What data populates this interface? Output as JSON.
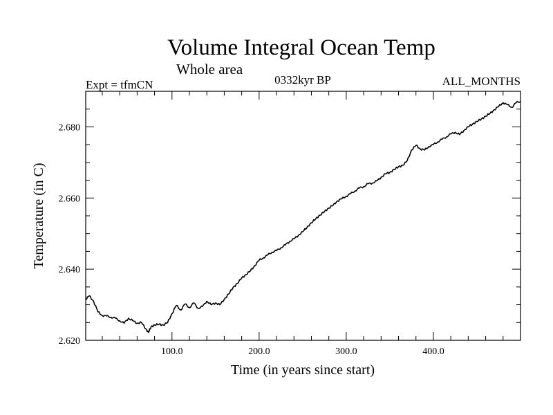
{
  "chart_data": {
    "type": "line",
    "title": "Volume Integral Ocean Temp",
    "subtitle": "Whole area",
    "left_label": "Expt = tfmCN",
    "center_label": "0332kyr BP",
    "right_label": "ALL_MONTHS",
    "xlabel": "Time (in years since start)",
    "ylabel": "Temperature (in C)",
    "xlim": [
      1,
      500
    ],
    "ylim": [
      2.62,
      2.69
    ],
    "x_major_ticks": [
      100,
      200,
      300,
      400
    ],
    "x_tick_labels": [
      "100.0",
      "200.0",
      "300.0",
      "400.0"
    ],
    "x_minor_step": 20,
    "y_major_ticks": [
      2.62,
      2.64,
      2.66,
      2.68
    ],
    "y_tick_labels": [
      "2.620",
      "2.640",
      "2.660",
      "2.680"
    ],
    "y_minor_step": 0.005,
    "grid": false,
    "series": [
      {
        "x": [
          1,
          5,
          10,
          15,
          20,
          25,
          30,
          35,
          40,
          45,
          50,
          55,
          60,
          65,
          70,
          73,
          76,
          80,
          85,
          90,
          95,
          100,
          105,
          110,
          115,
          120,
          125,
          130,
          135,
          140,
          145,
          150,
          155,
          160,
          165,
          170,
          175,
          180,
          185,
          190,
          195,
          200,
          205,
          210,
          215,
          220,
          225,
          230,
          235,
          240,
          245,
          250,
          255,
          260,
          265,
          270,
          275,
          280,
          285,
          290,
          295,
          300,
          305,
          310,
          315,
          320,
          325,
          330,
          335,
          340,
          345,
          350,
          355,
          360,
          365,
          370,
          375,
          380,
          385,
          390,
          395,
          400,
          405,
          410,
          415,
          420,
          425,
          430,
          435,
          440,
          445,
          450,
          455,
          460,
          465,
          470,
          475,
          480,
          485,
          490,
          495,
          500
        ],
        "values": [
          2.6315,
          2.6325,
          2.631,
          2.628,
          2.627,
          2.6268,
          2.6265,
          2.6262,
          2.6255,
          2.6248,
          2.6262,
          2.6255,
          2.6248,
          2.625,
          2.6232,
          2.6222,
          2.6238,
          2.6243,
          2.6245,
          2.6243,
          2.625,
          2.6275,
          2.6298,
          2.6285,
          2.6302,
          2.6292,
          2.6305,
          2.629,
          2.6295,
          2.631,
          2.63,
          2.6305,
          2.63,
          2.6315,
          2.633,
          2.6348,
          2.636,
          2.6375,
          2.6385,
          2.6395,
          2.641,
          2.6425,
          2.6432,
          2.644,
          2.6448,
          2.6452,
          2.646,
          2.6468,
          2.6478,
          2.6485,
          2.6495,
          2.6505,
          2.6518,
          2.653,
          2.6542,
          2.6552,
          2.6562,
          2.6572,
          2.658,
          2.6592,
          2.6598,
          2.6605,
          2.6612,
          2.662,
          2.6628,
          2.6632,
          2.664,
          2.6642,
          2.6648,
          2.6658,
          2.6668,
          2.6672,
          2.668,
          2.6688,
          2.6692,
          2.6705,
          2.6735,
          2.6748,
          2.6738,
          2.6735,
          2.6745,
          2.675,
          2.6758,
          2.6765,
          2.6772,
          2.678,
          2.6785,
          2.6778,
          2.679,
          2.68,
          2.6808,
          2.6815,
          2.6822,
          2.683,
          2.6838,
          2.6848,
          2.6858,
          2.6868,
          2.6862,
          2.6855,
          2.6868,
          2.6872
        ]
      }
    ]
  }
}
